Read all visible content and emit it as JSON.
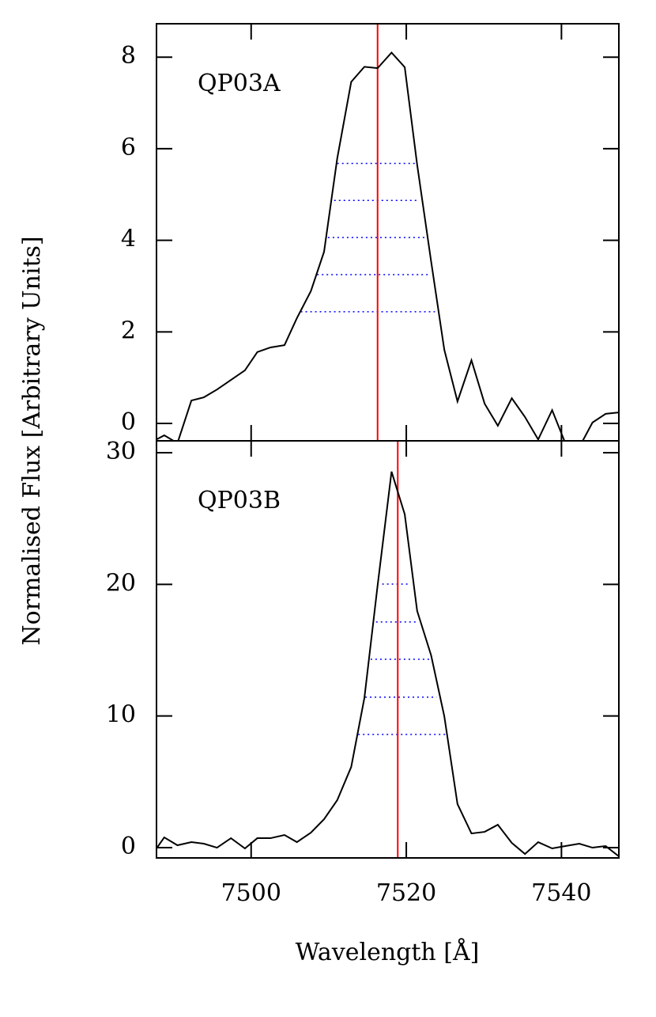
{
  "chart_data": [
    {
      "type": "line",
      "label": "QP03A",
      "ylabel": "Normalised Flux [Arbitrary Units]",
      "x": [
        7487.8,
        7488.8,
        7490.5,
        7492.3,
        7493.9,
        7495.6,
        7497.4,
        7499.2,
        7500.8,
        7502.5,
        7504.3,
        7505.9,
        7507.7,
        7509.4,
        7511.1,
        7512.9,
        7514.6,
        7516.3,
        7518.1,
        7519.8,
        7521.4,
        7523.2,
        7524.9,
        7526.6,
        7528.4,
        7530.1,
        7531.8,
        7533.6,
        7535.3,
        7537.0,
        7538.8,
        7540.5,
        7542.3,
        7544.0,
        7545.7,
        7547.4
      ],
      "series": [
        {
          "color": "#000000",
          "values": [
            -0.35,
            -0.26,
            -0.43,
            0.5,
            0.57,
            0.74,
            0.95,
            1.16,
            1.56,
            1.66,
            1.71,
            2.3,
            2.89,
            3.75,
            5.79,
            7.46,
            7.79,
            7.76,
            8.1,
            7.78,
            5.65,
            3.54,
            1.61,
            0.48,
            1.38,
            0.43,
            -0.05,
            0.55,
            0.14,
            -0.35,
            0.29,
            -0.43,
            -0.52,
            0.02,
            0.21,
            0.24
          ]
        }
      ],
      "vline": {
        "x": 7516.3,
        "color": "#ff0000"
      },
      "hlines_color": "#0000ff",
      "hlines": [
        {
          "y": 5.68,
          "xmin": 7511.1,
          "xmax": 7521.1
        },
        {
          "y": 4.87,
          "xmin": 7510.7,
          "xmax": 7521.7
        },
        {
          "y": 4.06,
          "xmin": 7509.9,
          "xmax": 7522.4
        },
        {
          "y": 3.25,
          "xmin": 7508.5,
          "xmax": 7523.0
        },
        {
          "y": 2.44,
          "xmin": 7506.4,
          "xmax": 7523.7
        }
      ],
      "xlim": [
        7487.8,
        7547.4
      ],
      "xticks": [
        7500,
        7520,
        7540
      ],
      "show_xtick_labels": false,
      "ylim": [
        -0.38,
        8.73
      ],
      "yticks": [
        0,
        2,
        4,
        6,
        8
      ]
    },
    {
      "type": "line",
      "label": "QP03B",
      "xlabel": "Wavelength [Å]",
      "x": [
        7487.8,
        7488.8,
        7490.5,
        7492.3,
        7493.9,
        7495.6,
        7497.4,
        7499.2,
        7500.8,
        7502.5,
        7504.3,
        7505.9,
        7507.7,
        7509.4,
        7511.1,
        7512.9,
        7514.6,
        7516.3,
        7518.1,
        7519.8,
        7521.4,
        7523.2,
        7524.9,
        7526.6,
        7528.4,
        7530.1,
        7531.8,
        7533.6,
        7535.3,
        7537.0,
        7538.8,
        7540.5,
        7542.3,
        7544.0,
        7545.7,
        7547.4
      ],
      "series": [
        {
          "color": "#000000",
          "values": [
            -0.06,
            0.78,
            0.18,
            0.42,
            0.3,
            0,
            0.72,
            -0.06,
            0.72,
            0.72,
            0.96,
            0.42,
            1.14,
            2.16,
            3.61,
            6.13,
            11.37,
            19.9,
            28.56,
            25.32,
            17.98,
            14.61,
            9.98,
            3.31,
            1.08,
            1.2,
            1.74,
            0.36,
            -0.48,
            0.42,
            -0.06,
            0.12,
            0.3,
            0,
            0.12,
            -0.66
          ]
        }
      ],
      "vline": {
        "x": 7518.9,
        "color": "#ff0000"
      },
      "hlines_color": "#0000ff",
      "hlines": [
        {
          "y": 20.02,
          "xmin": 7516.9,
          "xmax": 7520.4
        },
        {
          "y": 17.14,
          "xmin": 7516.1,
          "xmax": 7521.6
        },
        {
          "y": 14.31,
          "xmin": 7515.4,
          "xmax": 7523.0
        },
        {
          "y": 11.43,
          "xmin": 7514.7,
          "xmax": 7523.9
        },
        {
          "y": 8.6,
          "xmin": 7513.8,
          "xmax": 7525.2
        }
      ],
      "xlim": [
        7487.8,
        7547.4
      ],
      "xticks": [
        7500,
        7520,
        7540
      ],
      "show_xtick_labels": true,
      "ylim": [
        -0.78,
        30.9
      ],
      "yticks": [
        0,
        10,
        20,
        30
      ]
    }
  ]
}
